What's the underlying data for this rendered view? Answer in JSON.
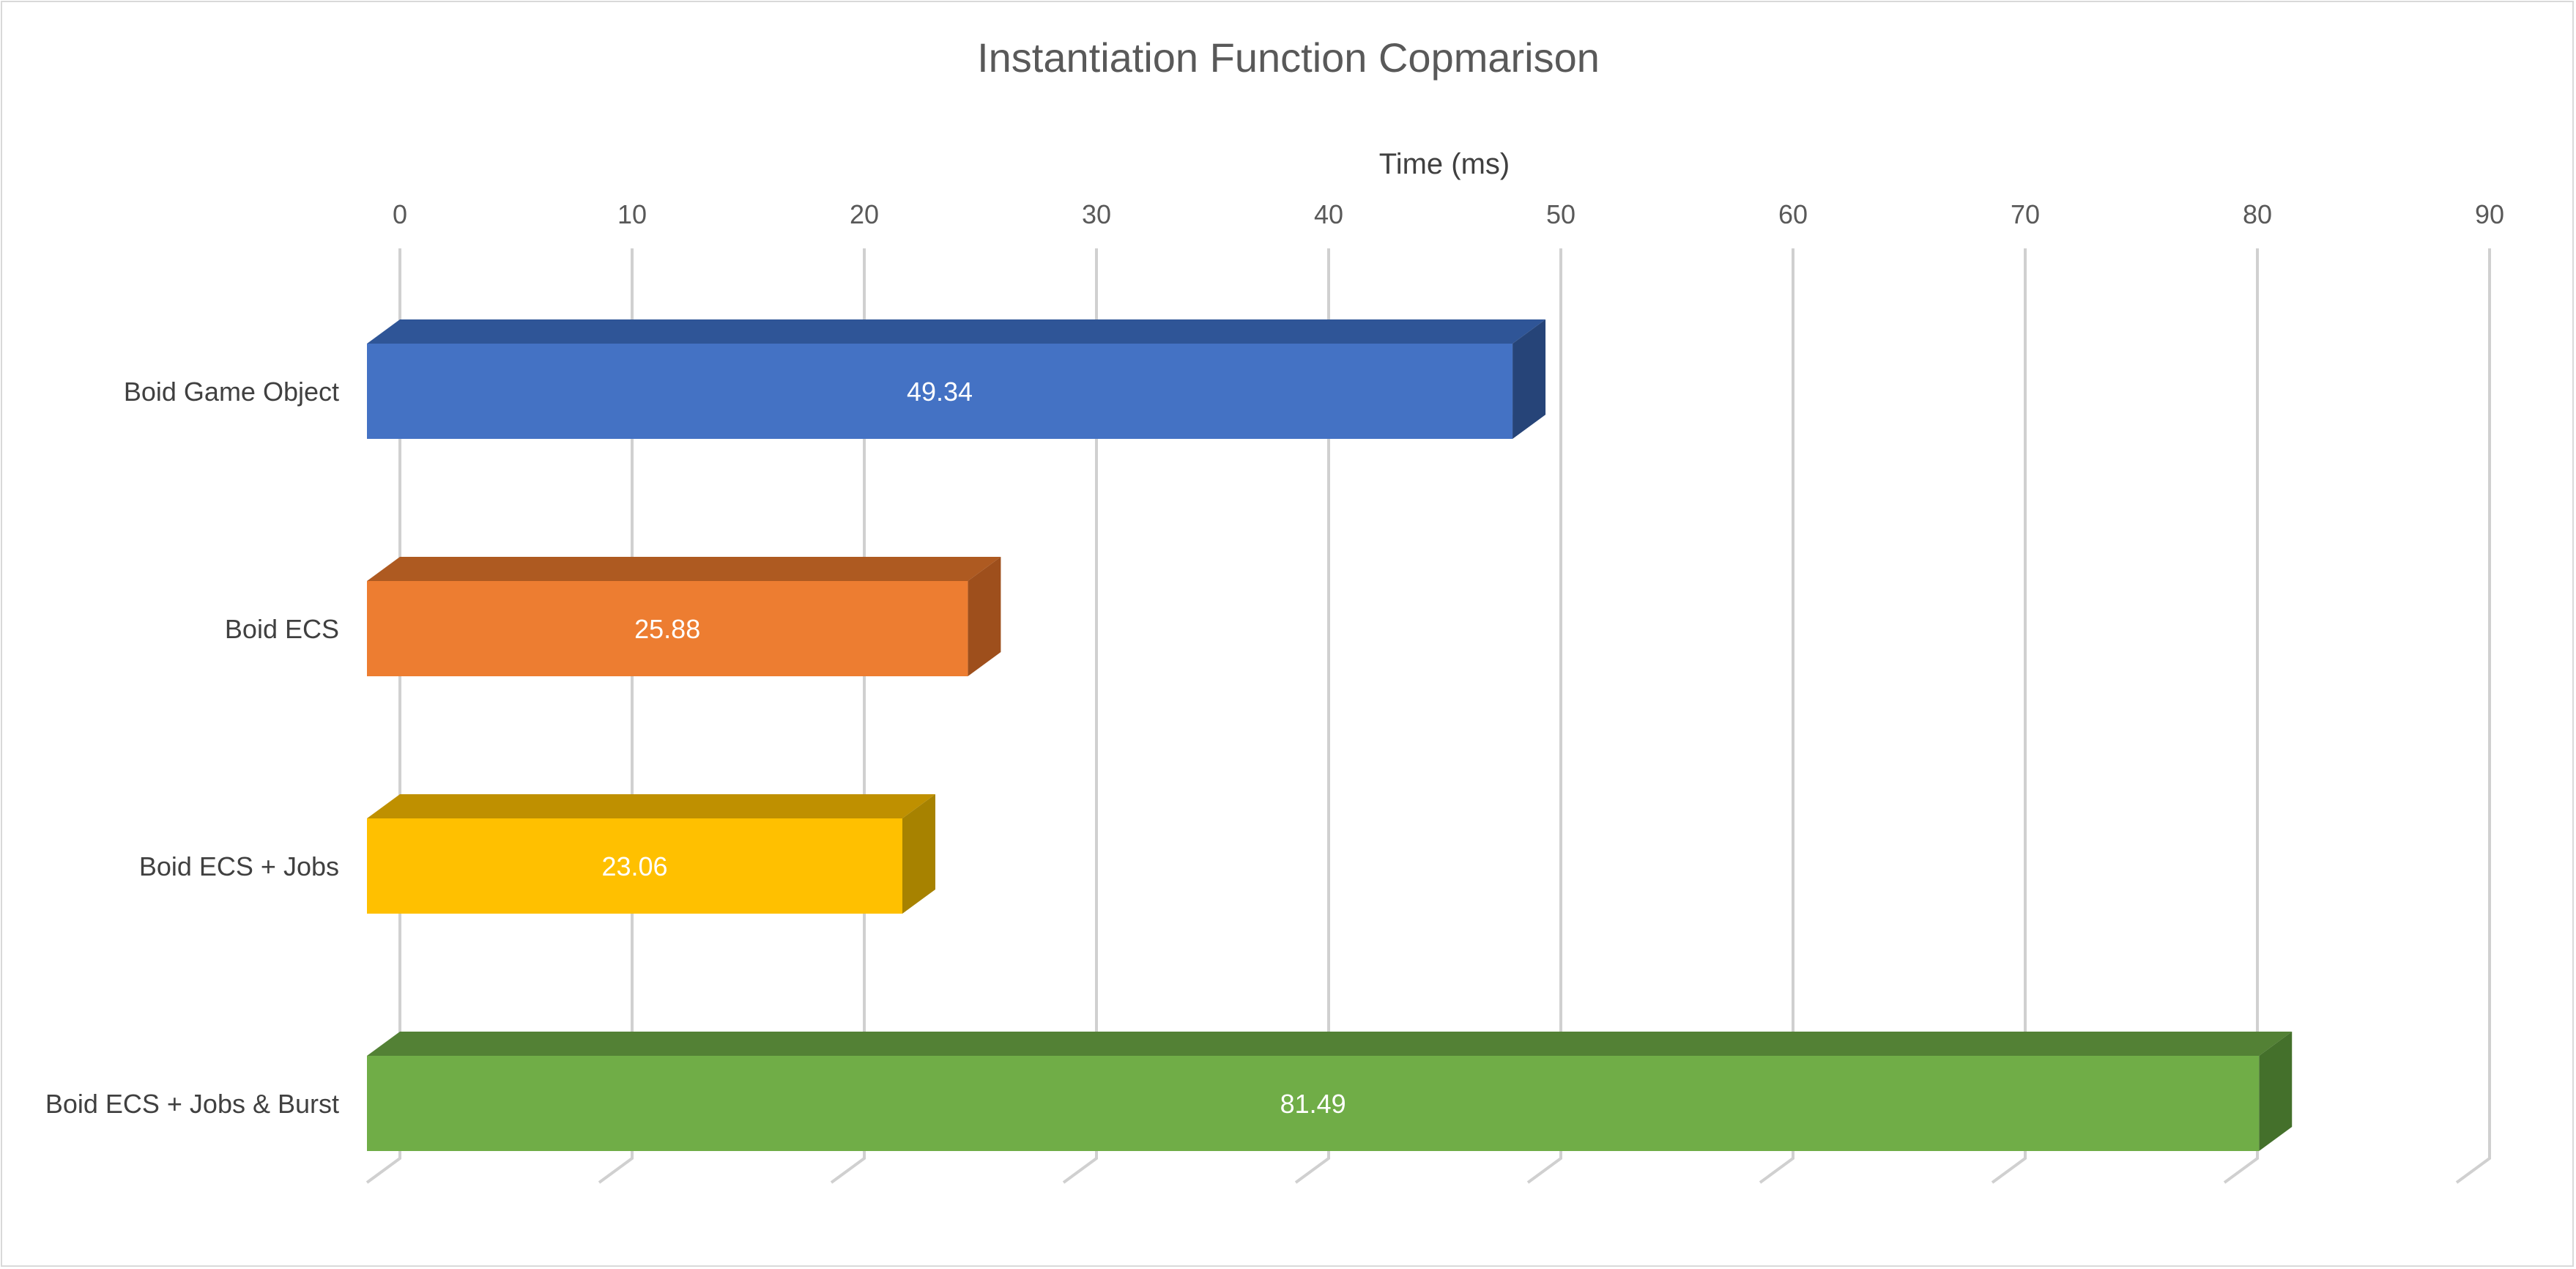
{
  "chart_data": {
    "type": "bar",
    "orientation": "horizontal",
    "style": "3d-clustered",
    "title": "Instantiation Function Copmarison",
    "xlabel": "Time (ms)",
    "xlabel_position": "top",
    "xlim": [
      0,
      90
    ],
    "xticks": [
      0,
      10,
      20,
      30,
      40,
      50,
      60,
      70,
      80,
      90
    ],
    "grid": true,
    "legend": "none",
    "categories": [
      "Boid Game Object",
      "Boid ECS",
      "Boid ECS + Jobs",
      "Boid ECS + Jobs & Burst"
    ],
    "values": [
      49.34,
      25.88,
      23.06,
      81.49
    ],
    "data_labels": [
      "49.34",
      "25.88",
      "23.06",
      "81.49"
    ],
    "colors": {
      "front": [
        "#4472C4",
        "#ED7D31",
        "#FFC000",
        "#70AD47"
      ],
      "top": [
        "#2F5597",
        "#AE5A21",
        "#BF9000",
        "#538135"
      ],
      "side": [
        "#264478",
        "#9E4F1C",
        "#A78200",
        "#44702B"
      ]
    }
  }
}
